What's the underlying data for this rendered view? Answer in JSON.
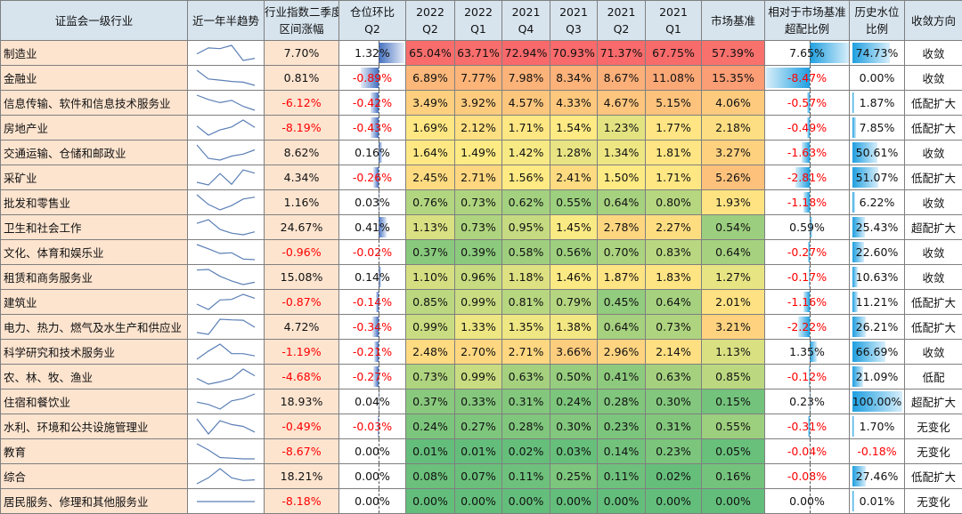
{
  "headers": {
    "industry": "证监会一级行业",
    "trend": "近一年半趋势",
    "return_l1": "行业指数二季度",
    "return_l2": "区间涨幅",
    "pos_l1": "仓位环比",
    "pos_l2": "Q2",
    "q": [
      [
        "2022",
        "Q2"
      ],
      [
        "2022",
        "Q1"
      ],
      [
        "2021",
        "Q4"
      ],
      [
        "2021",
        "Q3"
      ],
      [
        "2021",
        "Q2"
      ],
      [
        "2021",
        "Q1"
      ]
    ],
    "bench": "市场基准",
    "over_l1": "相对于市场基准",
    "over_l2": "超配比例",
    "hist_l1": "历史水位",
    "hist_l2": "比例",
    "dir": "收敛方向"
  },
  "colors": {
    "red": "#f8696b",
    "yellow": "#ffeb84",
    "green": "#63be7b",
    "spark": "#5b7fb5"
  },
  "rows": [
    {
      "name": "制造业",
      "ret": "7.70%",
      "pos": "1.32%",
      "q": [
        "65.04%",
        "63.71%",
        "72.94%",
        "70.93%",
        "71.37%",
        "67.75%"
      ],
      "bench": "57.39%",
      "over": "7.65%",
      "hist": "74.73%",
      "dir": "收敛"
    },
    {
      "name": "金融业",
      "ret": "0.81%",
      "pos": "-0.89%",
      "q": [
        "6.89%",
        "7.77%",
        "7.98%",
        "8.34%",
        "8.67%",
        "11.08%"
      ],
      "bench": "15.35%",
      "over": "-8.47%",
      "hist": "0.00%",
      "dir": "收敛"
    },
    {
      "name": "信息传输、软件和信息技术服务业",
      "ret": "-6.12%",
      "pos": "-0.42%",
      "q": [
        "3.49%",
        "3.92%",
        "4.57%",
        "4.33%",
        "4.67%",
        "5.15%"
      ],
      "bench": "4.06%",
      "over": "-0.57%",
      "hist": "1.87%",
      "dir": "低配扩大"
    },
    {
      "name": "房地产业",
      "ret": "-8.19%",
      "pos": "-0.43%",
      "q": [
        "1.69%",
        "2.12%",
        "1.71%",
        "1.54%",
        "1.23%",
        "1.77%"
      ],
      "bench": "2.18%",
      "over": "-0.49%",
      "hist": "7.85%",
      "dir": "低配扩大"
    },
    {
      "name": "交通运输、仓储和邮政业",
      "ret": "8.62%",
      "pos": "0.16%",
      "q": [
        "1.64%",
        "1.49%",
        "1.42%",
        "1.28%",
        "1.34%",
        "1.81%"
      ],
      "bench": "3.27%",
      "over": "-1.63%",
      "hist": "50.61%",
      "dir": "收敛"
    },
    {
      "name": "采矿业",
      "ret": "4.34%",
      "pos": "-0.26%",
      "q": [
        "2.45%",
        "2.71%",
        "1.56%",
        "2.41%",
        "1.50%",
        "1.71%"
      ],
      "bench": "5.26%",
      "over": "-2.81%",
      "hist": "51.07%",
      "dir": "低配扩大"
    },
    {
      "name": "批发和零售业",
      "ret": "1.16%",
      "pos": "0.03%",
      "q": [
        "0.76%",
        "0.73%",
        "0.62%",
        "0.55%",
        "0.64%",
        "0.80%"
      ],
      "bench": "1.93%",
      "over": "-1.18%",
      "hist": "6.22%",
      "dir": "收敛"
    },
    {
      "name": "卫生和社会工作",
      "ret": "24.67%",
      "pos": "0.41%",
      "q": [
        "1.13%",
        "0.73%",
        "0.95%",
        "1.45%",
        "2.78%",
        "2.27%"
      ],
      "bench": "0.54%",
      "over": "0.59%",
      "hist": "25.43%",
      "dir": "超配扩大"
    },
    {
      "name": "文化、体育和娱乐业",
      "ret": "-0.96%",
      "pos": "-0.02%",
      "q": [
        "0.37%",
        "0.39%",
        "0.58%",
        "0.56%",
        "0.70%",
        "0.83%"
      ],
      "bench": "0.64%",
      "over": "-0.27%",
      "hist": "22.60%",
      "dir": "收敛"
    },
    {
      "name": "租赁和商务服务业",
      "ret": "15.08%",
      "pos": "0.14%",
      "q": [
        "1.10%",
        "0.96%",
        "1.18%",
        "1.46%",
        "1.87%",
        "1.83%"
      ],
      "bench": "1.27%",
      "over": "-0.17%",
      "hist": "10.63%",
      "dir": "收敛"
    },
    {
      "name": "建筑业",
      "ret": "-0.87%",
      "pos": "-0.14%",
      "q": [
        "0.85%",
        "0.99%",
        "0.81%",
        "0.79%",
        "0.45%",
        "0.64%"
      ],
      "bench": "2.01%",
      "over": "-1.16%",
      "hist": "11.21%",
      "dir": "低配扩大"
    },
    {
      "name": "电力、热力、燃气及水生产和供应业",
      "ret": "4.72%",
      "pos": "-0.34%",
      "q": [
        "0.99%",
        "1.33%",
        "1.35%",
        "1.38%",
        "0.64%",
        "0.73%"
      ],
      "bench": "3.21%",
      "over": "-2.22%",
      "hist": "26.21%",
      "dir": "低配扩大"
    },
    {
      "name": "科学研究和技术服务业",
      "ret": "-1.19%",
      "pos": "-0.21%",
      "q": [
        "2.48%",
        "2.70%",
        "2.71%",
        "3.66%",
        "2.96%",
        "2.14%"
      ],
      "bench": "1.13%",
      "over": "1.35%",
      "hist": "66.69%",
      "dir": "收敛"
    },
    {
      "name": "农、林、牧、渔业",
      "ret": "-4.68%",
      "pos": "-0.27%",
      "q": [
        "0.73%",
        "0.99%",
        "0.63%",
        "0.50%",
        "0.41%",
        "0.63%"
      ],
      "bench": "0.85%",
      "over": "-0.12%",
      "hist": "21.09%",
      "dir": "低配"
    },
    {
      "name": "住宿和餐饮业",
      "ret": "18.93%",
      "pos": "0.04%",
      "q": [
        "0.37%",
        "0.33%",
        "0.31%",
        "0.24%",
        "0.28%",
        "0.30%"
      ],
      "bench": "0.15%",
      "over": "0.23%",
      "hist": "100.00%",
      "dir": "超配扩大"
    },
    {
      "name": "水利、环境和公共设施管理业",
      "ret": "-0.49%",
      "pos": "-0.03%",
      "q": [
        "0.24%",
        "0.27%",
        "0.28%",
        "0.30%",
        "0.23%",
        "0.31%"
      ],
      "bench": "0.55%",
      "over": "-0.31%",
      "hist": "1.70%",
      "dir": "无变化"
    },
    {
      "name": "教育",
      "ret": "-8.67%",
      "pos": "0.00%",
      "q": [
        "0.01%",
        "0.01%",
        "0.02%",
        "0.03%",
        "0.14%",
        "0.23%"
      ],
      "bench": "0.05%",
      "over": "-0.04%",
      "hist": "-0.18%",
      "dir": "无变化"
    },
    {
      "name": "综合",
      "ret": "18.21%",
      "pos": "0.00%",
      "q": [
        "0.08%",
        "0.07%",
        "0.11%",
        "0.25%",
        "0.11%",
        "0.02%"
      ],
      "bench": "0.16%",
      "over": "-0.08%",
      "hist": "27.46%",
      "dir": "低配扩大"
    },
    {
      "name": "居民服务、修理和其他服务业",
      "ret": "-8.18%",
      "pos": "0.00%",
      "q": [
        "0.00%",
        "0.00%",
        "0.00%",
        "0.00%",
        "0.00%",
        "0.00%"
      ],
      "bench": "0.00%",
      "over": "0.00%",
      "hist": "0.01%",
      "dir": "无变化"
    }
  ]
}
